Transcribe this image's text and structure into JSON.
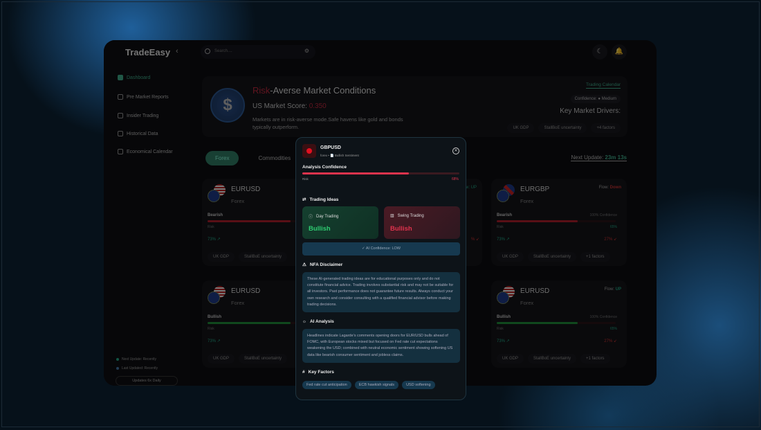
{
  "app": {
    "name": "TradeEasy",
    "collapse_icon": "chevron-left-icon"
  },
  "search": {
    "placeholder": "Search...."
  },
  "sidebar": {
    "items": [
      {
        "label": "Dashboard",
        "icon": "grid-icon",
        "active": true
      },
      {
        "label": "Pre Market Reports",
        "icon": "report-icon"
      },
      {
        "label": "Insider Trading",
        "icon": "swap-icon"
      },
      {
        "label": "Historical Data",
        "icon": "history-icon"
      },
      {
        "label": "Economical Calendar",
        "icon": "calendar-icon"
      }
    ],
    "status": {
      "next": "Next Update: Recently",
      "last": "Last Updated: Recently",
      "updates": "Updates 6x Daily"
    }
  },
  "hero": {
    "title_highlight": "Risk",
    "title_rest": "-Averse Market Conditions",
    "score_label": "US Market Score:",
    "score_value": "0.350",
    "description": "Markets are in risk-averse mode.Safe havens like gold and bonds typically outperform.",
    "trading_calendar": "Trading Calendar",
    "confidence": "Confidence: ● Medium",
    "key_drivers_title": "Key Market Drivers:",
    "drivers": [
      "UK GDP",
      "StallBoE uncertainty",
      "+4 factors"
    ]
  },
  "tabs": [
    "Forex",
    "Commodities"
  ],
  "next_update": {
    "label": "Next Update:",
    "value": "23m 13s"
  },
  "cards": [
    {
      "pair": "EURUSD",
      "type": "Forex",
      "sentiment": "Bearish",
      "risk": "Risk",
      "up": "73% ↗",
      "fill": 0.7,
      "color": "#b21d2c",
      "chips": [
        "UK GDP",
        "StallBoE uncertainty"
      ]
    },
    {
      "pair": "",
      "type": "",
      "flow": "Flow: UP",
      "flow_color": "#2a8",
      "up": "",
      "down": "%  ↙",
      "chips": []
    },
    {
      "pair": "EURGBP",
      "type": "Forex",
      "flow_label": "Flow:",
      "flow_value": "Down",
      "flow_color": "#c33",
      "sentiment": "Bearish",
      "confidence": "100% Confidence",
      "risk": "Risk",
      "risk_value": "65%",
      "up": "73% ↗",
      "down": "27% ↙",
      "fill": 0.68,
      "color": "#b21d2c",
      "chips": [
        "UK GDP",
        "StallBoE uncertainty",
        "+1 factors"
      ]
    },
    {
      "pair": "EURUSD",
      "type": "Forex",
      "sentiment": "Bullish",
      "risk": "Risk",
      "up": "73% ↗",
      "fill": 0.7,
      "color": "#1f8f3a",
      "chips": [
        "UK GDP",
        "StallBoE uncertainty"
      ]
    },
    {
      "pair": "EURUSD",
      "type": "Forex",
      "flow_label": "Flow:",
      "flow_value": "UP",
      "flow_color": "#2a8",
      "sentiment": "Bullish",
      "confidence": "100% Confidence",
      "risk": "Risk",
      "risk_value": "65%",
      "up": "73% ↗",
      "down": "27% ↙",
      "fill": 0.68,
      "color": "#1f8f3a",
      "chips": [
        "UK GDP",
        "StallBoE uncertainty",
        "+1 factors"
      ]
    }
  ],
  "modal": {
    "pair": "GBPUSD",
    "subtitle": "forex • 📄 Bullish Sentiment",
    "confidence_label": "Analysis Confidence",
    "risk_label": "Risk",
    "confidence_pct": "68%",
    "confidence_value": 0.68,
    "trading_ideas_label": "Trading Ideas",
    "day": {
      "label": "Day Trading",
      "value": "Bullish"
    },
    "swing": {
      "label": "Swing Trading",
      "value": "Bullish"
    },
    "ai_confidence": "AI Confidence: LOW",
    "nfa_label": "NFA Disclaimer",
    "nfa_text": "These AI-generated trading ideas are for educational purposes only and do not constitute financial advice. Trading involves substantial risk and may not be suitable for all investors. Past performance does not guarantee future results. Always conduct your own research and consider consulting with a qualified financial advisor before making trading decisions.",
    "ai_label": "AI Analysis",
    "ai_text": "Headlines indicate Lagarde's comments opening doors for EUR/USD bulls ahead of FOMC, with European stocks mixed but focused on Fed rate cut expectations weakening the USD; combined with neutral economic sentiment showing softening US data like bearish consumer sentiment and jobless claims.",
    "key_factors_label": "Key Factors",
    "key_factors": [
      "Fed rate cut anticipation",
      "ECB hawkish signals",
      "USD softening"
    ]
  },
  "colors": {
    "accent": "#3fae8c",
    "risk": "#c0283d",
    "bullish": "#2ecc71",
    "bearish": "#e0334d"
  }
}
